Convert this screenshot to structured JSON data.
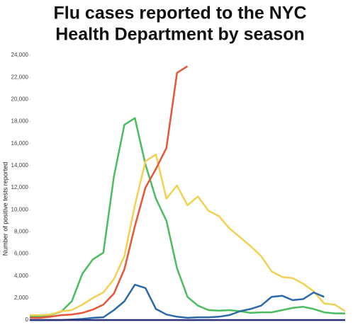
{
  "chart_data": {
    "type": "line",
    "title": [
      "Flu cases reported to the NYC",
      "Health Department by season"
    ],
    "y_label": "Number of positive tests reported",
    "categories": [
      null,
      null,
      null,
      null,
      null,
      null,
      null,
      null,
      null,
      null,
      null,
      null,
      null,
      null,
      null,
      null,
      null,
      null,
      null,
      null,
      null,
      null,
      null,
      null,
      null,
      null,
      null,
      null,
      null,
      null,
      null
    ],
    "series": [
      {
        "color": "#4cbd5e",
        "values": [
          320,
          320,
          450,
          770,
          1700,
          4200,
          5500,
          6100,
          13000,
          17700,
          18300,
          14100,
          11000,
          9000,
          4700,
          2100,
          1300,
          900,
          850,
          900,
          800,
          650,
          700,
          700,
          900,
          1100,
          1200,
          1000,
          700,
          600,
          600
        ]
      },
      {
        "color": "#f2d152",
        "values": [
          450,
          450,
          500,
          800,
          900,
          1400,
          2000,
          2500,
          3700,
          5800,
          10400,
          14400,
          15000,
          11000,
          12200,
          10400,
          11200,
          9900,
          9400,
          8300,
          7500,
          6700,
          5800,
          4400,
          3900,
          3800,
          3300,
          2600,
          1500,
          1400,
          800
        ]
      },
      {
        "color": "#e8553a",
        "values": [
          200,
          200,
          300,
          450,
          500,
          650,
          950,
          1400,
          2400,
          4600,
          8500,
          12000,
          13700,
          15600,
          22400,
          23000,
          null,
          null,
          null,
          null,
          null,
          null,
          null,
          null,
          null,
          null,
          null,
          null,
          null,
          null,
          null
        ]
      },
      {
        "color": "#2b6aa6",
        "values": [
          0,
          0,
          0,
          0,
          50,
          100,
          200,
          250,
          900,
          1700,
          3200,
          2900,
          1000,
          500,
          300,
          200,
          250,
          250,
          300,
          450,
          800,
          1000,
          1300,
          2100,
          2200,
          1800,
          1900,
          2500,
          2100,
          null,
          null
        ]
      },
      {
        "color": "#2c2f7a",
        "values": [
          0,
          0,
          0,
          0,
          0,
          0,
          0,
          0,
          0,
          0,
          0,
          0,
          0,
          0,
          0,
          0,
          0,
          0,
          0,
          0,
          0,
          0,
          0,
          0,
          0,
          0,
          0,
          0,
          0,
          0,
          0
        ]
      }
    ],
    "ylim": [
      0,
      24000
    ],
    "yticks": [
      0,
      {
        "value": 2000,
        "label": "2,000"
      },
      {
        "value": 4000,
        "label": "4,000"
      },
      {
        "value": 6000,
        "label": "6,000"
      },
      {
        "value": 8000,
        "label": "8,000"
      },
      {
        "value": 10000,
        "label": "10,000"
      },
      {
        "value": 12000,
        "label": "12,000"
      },
      {
        "value": 14000,
        "label": "14,000"
      },
      {
        "value": 16000,
        "label": "16,000"
      },
      {
        "value": 18000,
        "label": "18,000"
      },
      {
        "value": 20000,
        "label": "20,000"
      },
      {
        "value": 22000,
        "label": "22,000"
      },
      {
        "value": 24000,
        "label": "24,000"
      }
    ],
    "grid": false
  }
}
